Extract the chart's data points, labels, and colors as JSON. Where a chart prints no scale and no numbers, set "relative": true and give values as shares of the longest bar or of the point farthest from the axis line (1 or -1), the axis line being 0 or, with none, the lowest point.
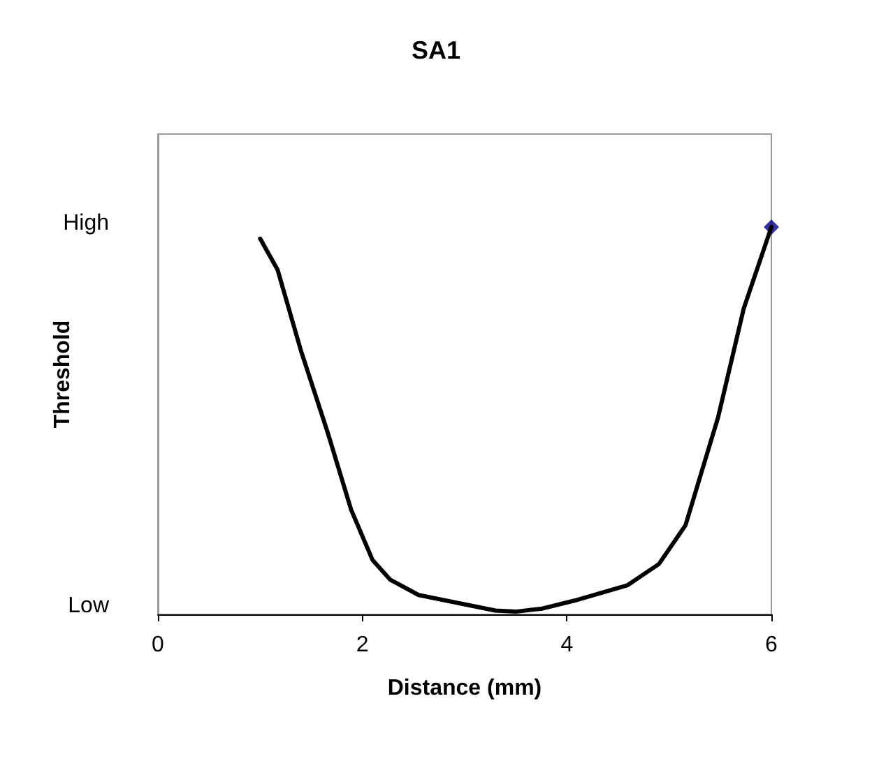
{
  "chart_data": {
    "type": "line",
    "title": "SA1",
    "xlabel": "Distance (mm)",
    "ylabel": "Threshold",
    "xlim": [
      0,
      6
    ],
    "xticks": [
      0,
      2,
      4,
      6
    ],
    "relative": true,
    "annotations": [
      "High",
      "Low"
    ],
    "grid": false,
    "series": [
      {
        "color": "#000000",
        "marker": "none",
        "x": [
          1,
          1.17,
          1.4,
          1.66,
          1.89,
          2.1,
          2.27,
          2.55,
          3.3,
          3.5,
          3.76,
          4.08,
          4.59,
          4.9,
          5.16,
          5.48,
          5.73,
          6
        ],
        "values": [
          0.97,
          0.89,
          0.68,
          0.47,
          0.27,
          0.14,
          0.09,
          0.05,
          0.01,
          0.007,
          0.015,
          0.036,
          0.075,
          0.13,
          0.23,
          0.51,
          0.79,
          1
        ]
      },
      {
        "type": "scatter",
        "color": "#000080",
        "marker": "diamond",
        "x": [
          6
        ],
        "values": [
          1
        ]
      }
    ]
  }
}
